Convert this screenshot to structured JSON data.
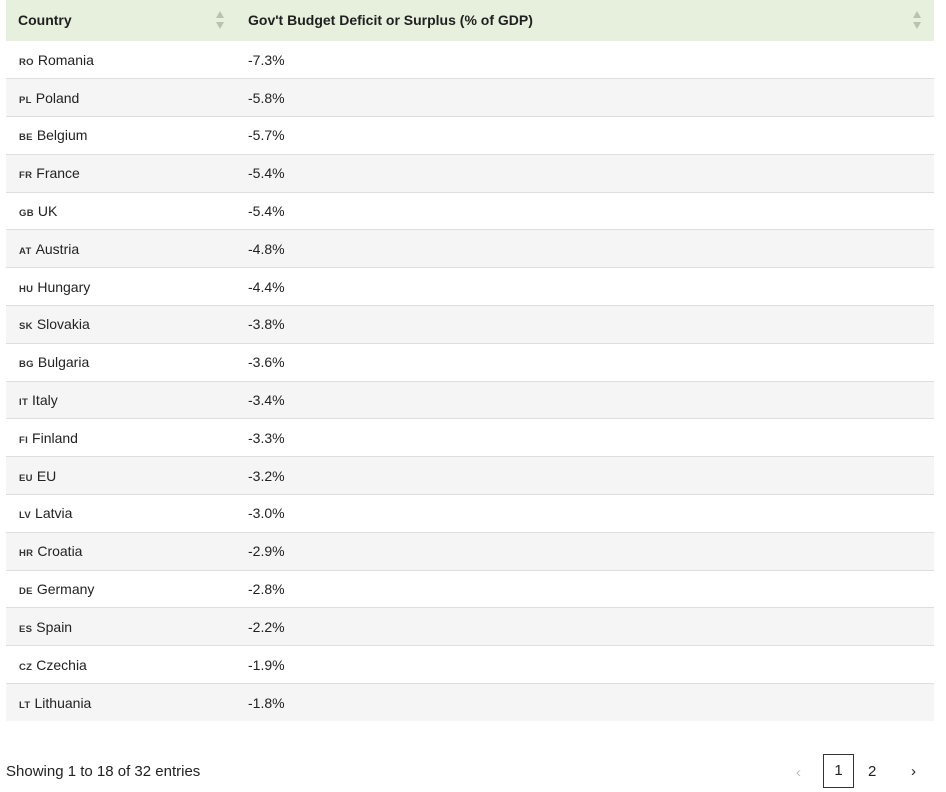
{
  "table": {
    "headers": {
      "country": "Country",
      "value": "Gov't Budget Deficit or Surplus (% of GDP)"
    },
    "rows": [
      {
        "code": "RO",
        "country": "Romania",
        "value": "-7.3%"
      },
      {
        "code": "PL",
        "country": "Poland",
        "value": "-5.8%"
      },
      {
        "code": "BE",
        "country": "Belgium",
        "value": "-5.7%"
      },
      {
        "code": "FR",
        "country": "France",
        "value": "-5.4%"
      },
      {
        "code": "GB",
        "country": "UK",
        "value": "-5.4%"
      },
      {
        "code": "AT",
        "country": "Austria",
        "value": "-4.8%"
      },
      {
        "code": "HU",
        "country": "Hungary",
        "value": "-4.4%"
      },
      {
        "code": "SK",
        "country": "Slovakia",
        "value": "-3.8%"
      },
      {
        "code": "BG",
        "country": "Bulgaria",
        "value": "-3.6%"
      },
      {
        "code": "IT",
        "country": "Italy",
        "value": "-3.4%"
      },
      {
        "code": "FI",
        "country": "Finland",
        "value": "-3.3%"
      },
      {
        "code": "EU",
        "country": "EU",
        "value": "-3.2%"
      },
      {
        "code": "LV",
        "country": "Latvia",
        "value": "-3.0%"
      },
      {
        "code": "HR",
        "country": "Croatia",
        "value": "-2.9%"
      },
      {
        "code": "DE",
        "country": "Germany",
        "value": "-2.8%"
      },
      {
        "code": "ES",
        "country": "Spain",
        "value": "-2.2%"
      },
      {
        "code": "CZ",
        "country": "Czechia",
        "value": "-1.9%"
      },
      {
        "code": "LT",
        "country": "Lithuania",
        "value": "-1.8%"
      }
    ]
  },
  "footer": {
    "info": "Showing 1 to 18 of 32 entries"
  },
  "pagination": {
    "prev": "‹",
    "pages": [
      "1",
      "2"
    ],
    "current": "1",
    "next": "›"
  },
  "colors": {
    "header_bg": "#e6f0dc",
    "row_stripe": "#f5f5f5"
  }
}
